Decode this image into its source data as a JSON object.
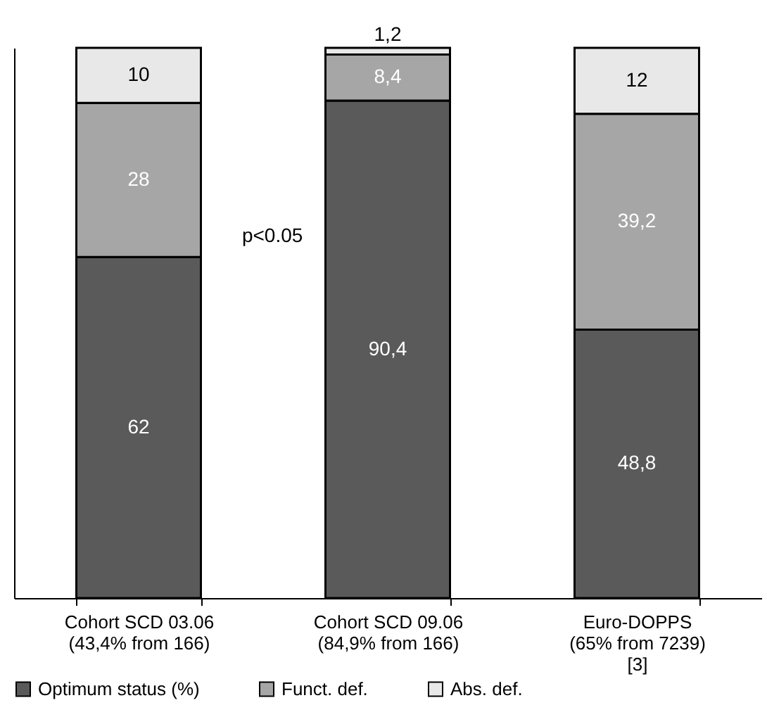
{
  "chart_data": {
    "type": "bar",
    "stacked": true,
    "categories": [
      "Cohort SCD 03.06\n(43,4% from 166)",
      "Cohort SCD 09.06\n(84,9% from 166)",
      "Euro-DOPPS\n(65% from 7239)\n[3]"
    ],
    "series": [
      {
        "name": "Optimum status (%)",
        "color": "#5a5a5a",
        "values": [
          62,
          90.4,
          48.8
        ],
        "value_labels": [
          "62",
          "90,4",
          "48,8"
        ]
      },
      {
        "name": "Funct. def.",
        "color": "#a6a6a6",
        "values": [
          28,
          8.4,
          39.2
        ],
        "value_labels": [
          "28",
          "8,4",
          "39,2"
        ]
      },
      {
        "name": "Abs. def.",
        "color": "#e8e8e8",
        "values": [
          10,
          1.2,
          12
        ],
        "value_labels": [
          "10",
          "1,2",
          "12"
        ]
      }
    ],
    "annotations": [
      "p<0.05"
    ],
    "legend": "bottom",
    "tick_labels": "x"
  }
}
